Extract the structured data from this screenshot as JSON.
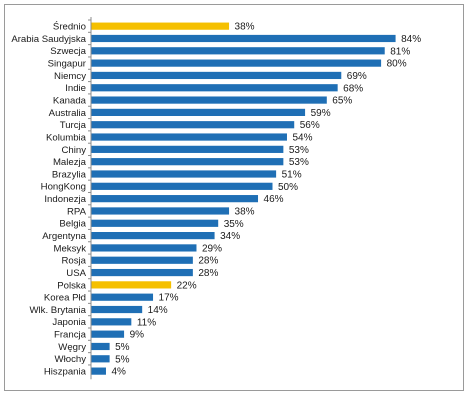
{
  "chart_data": {
    "type": "bar",
    "orientation": "horizontal",
    "categories": [
      "Średnio",
      "Arabia Saudyjska",
      "Szwecja",
      "Singapur",
      "Niemcy",
      "Indie",
      "Kanada",
      "Australia",
      "Turcja",
      "Kolumbia",
      "Chiny",
      "Malezja",
      "Brazylia",
      "HongKong",
      "Indonezja",
      "RPA",
      "Belgia",
      "Argentyna",
      "Meksyk",
      "Rosja",
      "USA",
      "Polska",
      "Korea Płd",
      "Wlk. Brytania",
      "Japonia",
      "Francja",
      "Węgry",
      "Włochy",
      "Hiszpania"
    ],
    "values": [
      38,
      84,
      81,
      80,
      69,
      68,
      65,
      59,
      56,
      54,
      53,
      53,
      51,
      50,
      46,
      38,
      35,
      34,
      29,
      28,
      28,
      22,
      17,
      14,
      11,
      9,
      5,
      5,
      4
    ],
    "value_labels": [
      "38%",
      "84%",
      "81%",
      "80%",
      "69%",
      "68%",
      "65%",
      "59%",
      "56%",
      "54%",
      "53%",
      "53%",
      "51%",
      "50%",
      "46%",
      "38%",
      "35%",
      "34%",
      "29%",
      "28%",
      "28%",
      "22%",
      "17%",
      "14%",
      "11%",
      "9%",
      "5%",
      "5%",
      "4%"
    ],
    "highlighted": [
      "Średnio",
      "Polska"
    ],
    "colors": {
      "default": "#1f6fb5",
      "highlight": "#f5c000",
      "axis": "#8c8c8c"
    },
    "xlim": [
      0,
      100
    ],
    "grid": false,
    "legend": "none",
    "title": "",
    "xlabel": "",
    "ylabel": ""
  }
}
